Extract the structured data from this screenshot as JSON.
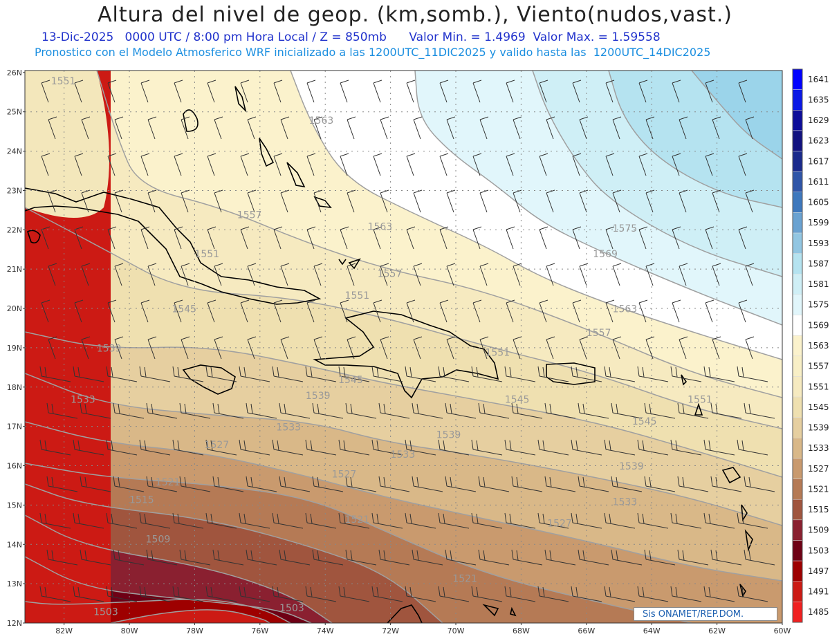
{
  "header": {
    "title": "Altura del nivel de geop. (km,somb.), Viento(nudos,vast.)",
    "line1_date": "13-Dic-2025",
    "line1_time": "0000 UTC / 8:00 pm Hora Local / Z = 850mb",
    "line1_min": "Valor Min. = 1.4969",
    "line1_max": "Valor Max. = 1.59558",
    "line2": "Pronostico con el Modelo Atmosferico WRF inicializado a las 1200UTC_11DIC2025 y valido hasta las  1200UTC_14DIC2025"
  },
  "axes": {
    "lat_labels": [
      "26N",
      "25N",
      "24N",
      "23N",
      "22N",
      "21N",
      "20N",
      "19N",
      "18N",
      "17N",
      "16N",
      "15N",
      "14N",
      "13N",
      "12N"
    ],
    "lon_labels": [
      "82W",
      "80W",
      "78W",
      "76W",
      "74W",
      "72W",
      "70W",
      "68W",
      "66W",
      "64W",
      "62W",
      "60W"
    ]
  },
  "colorbar": {
    "levels": [
      "1641",
      "1635",
      "1629",
      "1623",
      "1617",
      "1611",
      "1605",
      "1599",
      "1593",
      "1587",
      "1581",
      "1575",
      "1569",
      "1563",
      "1557",
      "1551",
      "1545",
      "1539",
      "1533",
      "1527",
      "1521",
      "1515",
      "1509",
      "1503",
      "1497",
      "1491",
      "1485"
    ],
    "colors": [
      "#0000ff",
      "#0a18e6",
      "#0d0d9a",
      "#121280",
      "#1a2a8c",
      "#2f55a8",
      "#3e78bd",
      "#6aa2d1",
      "#92c6e2",
      "#b5e3f0",
      "#cfeff6",
      "#e1f6fb",
      "#ffffff",
      "#fbf2cc",
      "#f8efc6",
      "#f6eac0",
      "#efe0b0",
      "#e6cfa0",
      "#d9b888",
      "#c99a6e",
      "#b57a55",
      "#a0553e",
      "#8a2030",
      "#6e0015",
      "#9e0000",
      "#cc1a14",
      "#f02020"
    ]
  },
  "contour_labels": [
    {
      "text": "1551",
      "lon": -82.4,
      "lat": 25.7
    },
    {
      "text": "1563",
      "lon": -74.5,
      "lat": 24.7
    },
    {
      "text": "1557",
      "lon": -76.7,
      "lat": 22.3
    },
    {
      "text": "1563",
      "lon": -72.7,
      "lat": 22.0
    },
    {
      "text": "1575",
      "lon": -65.2,
      "lat": 21.95
    },
    {
      "text": "1551",
      "lon": -78.0,
      "lat": 21.3
    },
    {
      "text": "1569",
      "lon": -65.8,
      "lat": 21.3
    },
    {
      "text": "1557",
      "lon": -72.4,
      "lat": 20.8
    },
    {
      "text": "1551",
      "lon": -73.4,
      "lat": 20.25
    },
    {
      "text": "1545",
      "lon": -78.7,
      "lat": 19.9
    },
    {
      "text": "1563",
      "lon": -65.2,
      "lat": 19.9
    },
    {
      "text": "1557",
      "lon": -66.0,
      "lat": 19.3
    },
    {
      "text": "1539",
      "lon": -81.0,
      "lat": 18.9
    },
    {
      "text": "1551",
      "lon": -69.1,
      "lat": 18.8
    },
    {
      "text": "1545",
      "lon": -73.6,
      "lat": 18.1
    },
    {
      "text": "1539",
      "lon": -74.6,
      "lat": 17.7
    },
    {
      "text": "1545",
      "lon": -68.5,
      "lat": 17.6
    },
    {
      "text": "1551",
      "lon": -62.9,
      "lat": 17.6
    },
    {
      "text": "1533",
      "lon": -81.8,
      "lat": 17.6
    },
    {
      "text": "1545",
      "lon": -64.6,
      "lat": 17.05
    },
    {
      "text": "1533",
      "lon": -75.5,
      "lat": 16.9
    },
    {
      "text": "1539",
      "lon": -70.6,
      "lat": 16.7
    },
    {
      "text": "1527",
      "lon": -77.7,
      "lat": 16.45
    },
    {
      "text": "1533",
      "lon": -72.0,
      "lat": 16.2
    },
    {
      "text": "1539",
      "lon": -65.0,
      "lat": 15.9
    },
    {
      "text": "1527",
      "lon": -73.8,
      "lat": 15.7
    },
    {
      "text": "1521",
      "lon": -79.2,
      "lat": 15.5
    },
    {
      "text": "1515",
      "lon": -80.0,
      "lat": 15.05
    },
    {
      "text": "1533",
      "lon": -65.2,
      "lat": 15.0
    },
    {
      "text": "1521",
      "lon": -73.4,
      "lat": 14.55
    },
    {
      "text": "1527",
      "lon": -67.2,
      "lat": 14.45
    },
    {
      "text": "1509",
      "lon": -79.5,
      "lat": 14.05
    },
    {
      "text": "1521",
      "lon": -70.1,
      "lat": 13.05
    },
    {
      "text": "1503",
      "lon": -81.1,
      "lat": 12.2
    },
    {
      "text": "1503",
      "lon": -75.4,
      "lat": 12.3
    }
  ],
  "footer": {
    "text": "Sis    ONAMET/REP.DOM."
  }
}
